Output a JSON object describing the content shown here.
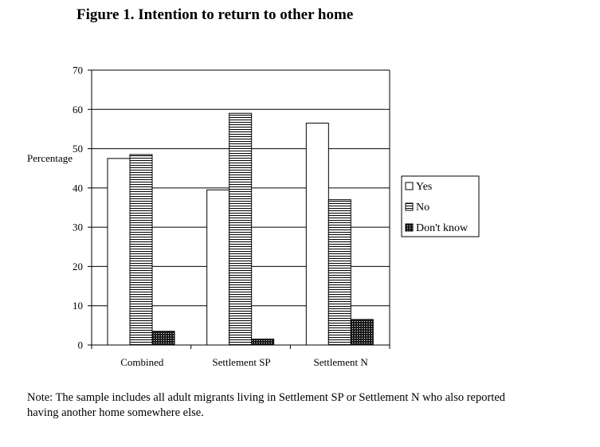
{
  "title": "Figure 1. Intention to return to other home",
  "note": {
    "line1": "Note: The sample includes all adult migrants living in Settlement SP or Settlement N who also reported",
    "line2": "having another home somewhere else."
  },
  "chart_data": {
    "type": "bar",
    "title": "Figure 1. Intention to return to other home",
    "ylabel": "Percentage",
    "xlabel": "",
    "ylim": [
      0,
      70
    ],
    "yticks": [
      0,
      10,
      20,
      30,
      40,
      50,
      60,
      70
    ],
    "grid": true,
    "legend_position": "right",
    "categories": [
      "Combined",
      "Settlement SP",
      "Settlement N"
    ],
    "series": [
      {
        "name": "Yes",
        "pattern": "plain",
        "color": "#ffffff",
        "values": [
          47.5,
          39.5,
          56.5
        ]
      },
      {
        "name": "No",
        "pattern": "horizontal-lines",
        "color": "#000000",
        "values": [
          48.5,
          59,
          37
        ]
      },
      {
        "name": "Don't know",
        "pattern": "dotted-dark",
        "color": "#000000",
        "values": [
          3.5,
          1.5,
          6.5
        ]
      }
    ]
  }
}
